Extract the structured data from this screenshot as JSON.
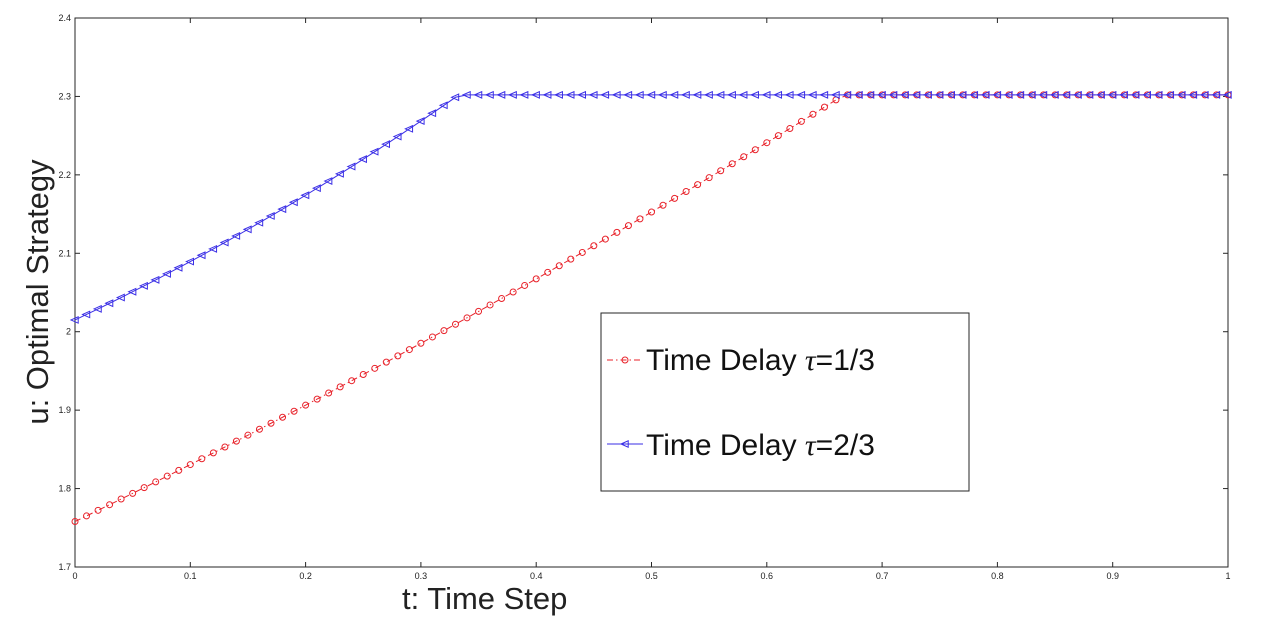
{
  "chart_data": {
    "type": "line",
    "xlabel": "t: Time Step",
    "ylabel": "u: Optimal Strategy",
    "xlim": [
      0,
      1
    ],
    "ylim": [
      1.7,
      2.4
    ],
    "x_ticks": [
      "0",
      "0.1",
      "0.2",
      "0.3",
      "0.4",
      "0.5",
      "0.6",
      "0.7",
      "0.8",
      "0.9",
      "1"
    ],
    "y_ticks": [
      "1.7",
      "1.8",
      "1.9",
      "2",
      "2.1",
      "2.2",
      "2.3",
      "2.4"
    ],
    "grid": false,
    "legend_position": "center-right",
    "sample_step": 0.01,
    "series": [
      {
        "name_prefix": "Time Delay ",
        "name_symbol": "τ",
        "name_suffix": "=1/3",
        "color": "#e8222a",
        "marker": "circle",
        "linestyle": "dash-dot",
        "x_start": 0,
        "y_start": 1.758,
        "y_mid": 2.012,
        "x_mid": 0.333,
        "x_break": 0.667,
        "y_plateau": 2.302
      },
      {
        "name_prefix": "Time Delay ",
        "name_symbol": "τ",
        "name_suffix": "=2/3",
        "color": "#3a2ee6",
        "marker": "triangle-left",
        "linestyle": "solid",
        "x_start": 0,
        "y_start": 2.015,
        "y_mid": 2.145,
        "x_mid": 0.167,
        "x_break": 0.333,
        "y_plateau": 2.302
      }
    ]
  }
}
